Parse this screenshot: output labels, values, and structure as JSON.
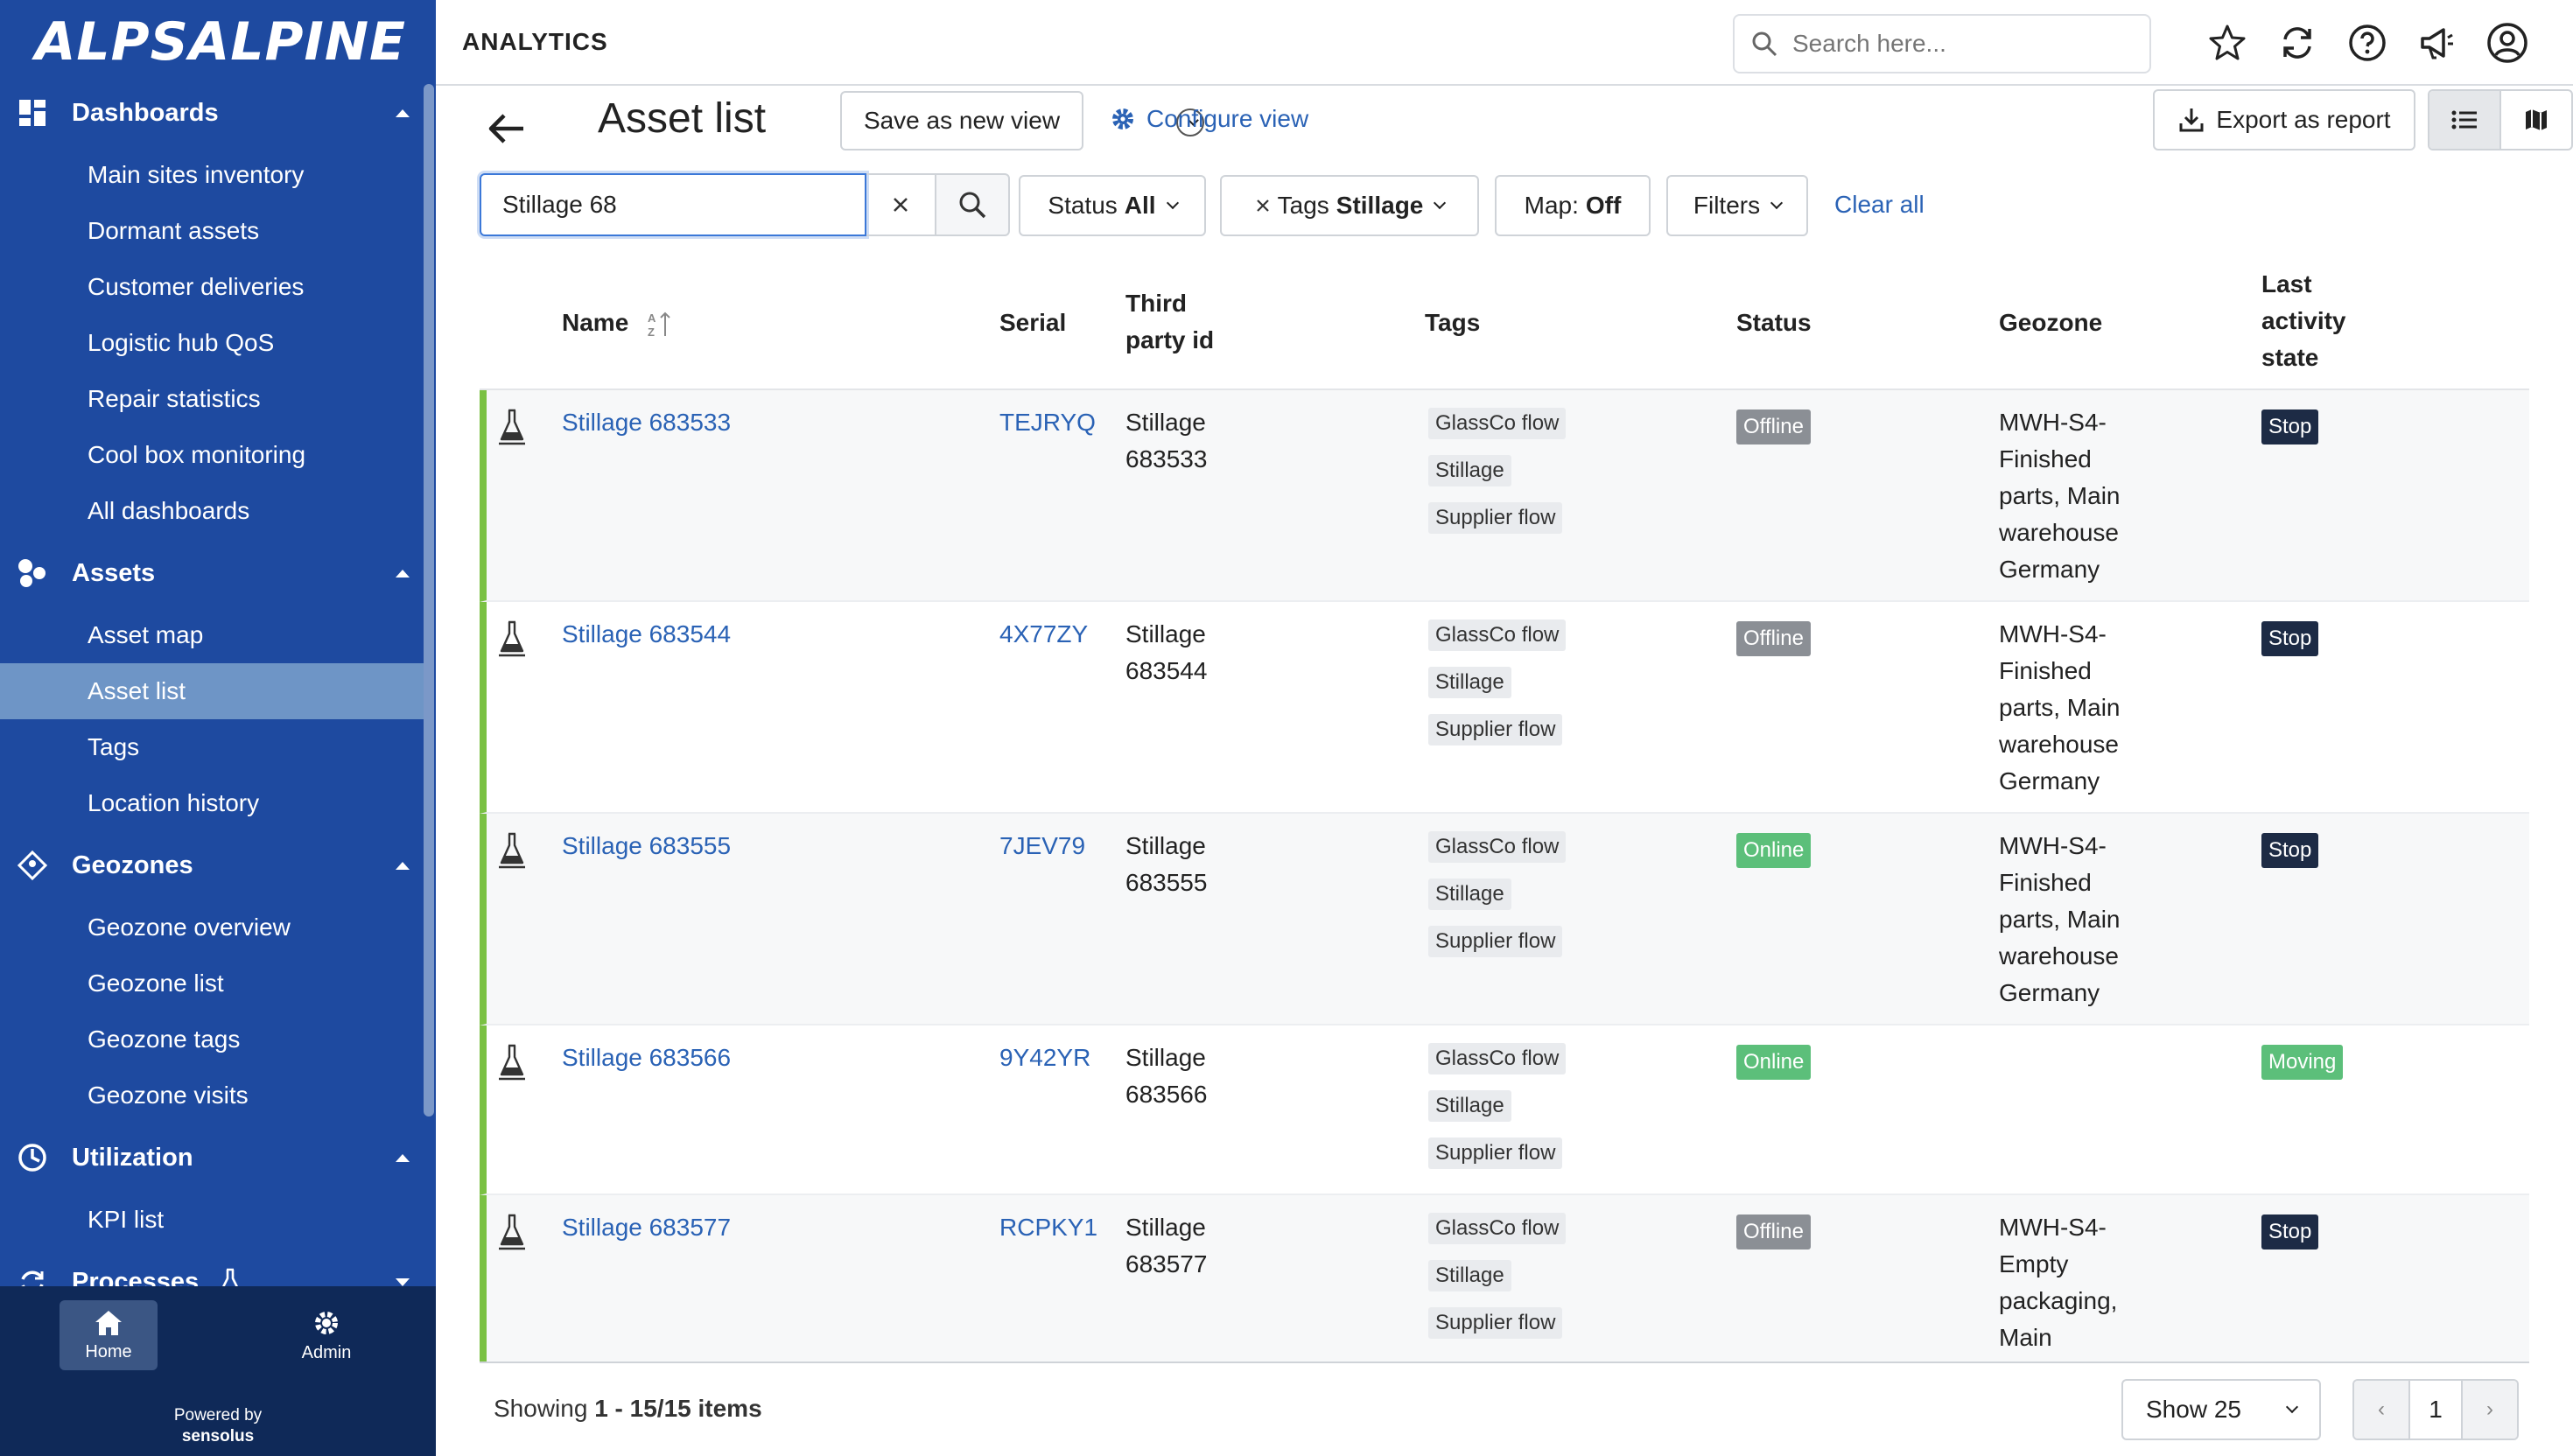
{
  "brand": {
    "logo_text": "ALPSALPINE",
    "powered_by": "Powered by",
    "powered_brand": "sensolus"
  },
  "colors": {
    "sidebar": "#1e4aa0",
    "accent": "#2a62b5",
    "online": "#5cbf7a",
    "offline": "#8b8f95",
    "stop": "#1d2b45",
    "row_marker": "#7ac143"
  },
  "sidebar": {
    "sections": [
      {
        "label": "Dashboards",
        "icon": "dashboard-icon",
        "expanded": true,
        "items": [
          "Main sites inventory",
          "Dormant assets",
          "Customer deliveries",
          "Logistic hub QoS",
          "Repair statistics",
          "Cool box monitoring",
          "All dashboards"
        ]
      },
      {
        "label": "Assets",
        "icon": "assets-icon",
        "expanded": true,
        "items": [
          "Asset map",
          "Asset list",
          "Tags",
          "Location history"
        ]
      },
      {
        "label": "Geozones",
        "icon": "geozone-icon",
        "expanded": true,
        "items": [
          "Geozone overview",
          "Geozone list",
          "Geozone tags",
          "Geozone visits"
        ]
      },
      {
        "label": "Utilization",
        "icon": "utilization-icon",
        "expanded": true,
        "items": [
          "KPI list"
        ]
      },
      {
        "label": "Processes",
        "icon": "processes-icon",
        "expanded": false,
        "items": []
      }
    ],
    "active_item": "Asset list",
    "footer": {
      "home_label": "Home",
      "admin_label": "Admin"
    }
  },
  "topbar": {
    "app_title": "ANALYTICS",
    "search_placeholder": "Search here...",
    "icons": [
      "star-icon",
      "refresh-icon",
      "help-icon",
      "announcement-icon",
      "user-icon"
    ]
  },
  "page": {
    "title": "Asset list",
    "save_view_label": "Save as new view",
    "configure_label": "Configure view",
    "export_label": "Export as report"
  },
  "filters": {
    "search_value": "Stillage 68",
    "status_label": "Status",
    "status_value": "All",
    "tags_label": "Tags",
    "tags_value": "Stillage",
    "map_label": "Map:",
    "map_value": "Off",
    "filters_label": "Filters",
    "clear_all_label": "Clear all"
  },
  "table": {
    "headers": {
      "name": "Name",
      "serial": "Serial",
      "third_party_1": "Third",
      "third_party_2": "party id",
      "tags": "Tags",
      "status": "Status",
      "geozone": "Geozone",
      "last_1": "Last",
      "last_2": "activity",
      "last_3": "state"
    },
    "rows": [
      {
        "name": "Stillage 683533",
        "serial": "TEJRYQ",
        "third_1": "Stillage",
        "third_2": "683533",
        "tags": [
          "GlassCo flow",
          "Stillage",
          "Supplier flow"
        ],
        "status": "Offline",
        "geozone": [
          "MWH-S4-",
          "Finished",
          "parts, Main",
          "warehouse",
          "Germany"
        ],
        "activity": "Stop"
      },
      {
        "name": "Stillage 683544",
        "serial": "4X77ZY",
        "third_1": "Stillage",
        "third_2": "683544",
        "tags": [
          "GlassCo flow",
          "Stillage",
          "Supplier flow"
        ],
        "status": "Offline",
        "geozone": [
          "MWH-S4-",
          "Finished",
          "parts, Main",
          "warehouse",
          "Germany"
        ],
        "activity": "Stop"
      },
      {
        "name": "Stillage 683555",
        "serial": "7JEV79",
        "third_1": "Stillage",
        "third_2": "683555",
        "tags": [
          "GlassCo flow",
          "Stillage",
          "Supplier flow"
        ],
        "status": "Online",
        "geozone": [
          "MWH-S4-",
          "Finished",
          "parts, Main",
          "warehouse",
          "Germany"
        ],
        "activity": "Stop"
      },
      {
        "name": "Stillage 683566",
        "serial": "9Y42YR",
        "third_1": "Stillage",
        "third_2": "683566",
        "tags": [
          "GlassCo flow",
          "Stillage",
          "Supplier flow"
        ],
        "status": "Online",
        "geozone": [],
        "activity": "Moving"
      },
      {
        "name": "Stillage 683577",
        "serial": "RCPKY1",
        "third_1": "Stillage",
        "third_2": "683577",
        "tags": [
          "GlassCo flow",
          "Stillage",
          "Supplier flow"
        ],
        "status": "Offline",
        "geozone": [
          "MWH-S4-",
          "Empty",
          "packaging,",
          "Main"
        ],
        "activity": "Stop"
      }
    ]
  },
  "pagination": {
    "showing_prefix": "Showing",
    "showing_range": "1 - 15/15 items",
    "page_size_label": "Show 25",
    "current_page": "1",
    "prev_label": "‹",
    "next_label": "›"
  }
}
